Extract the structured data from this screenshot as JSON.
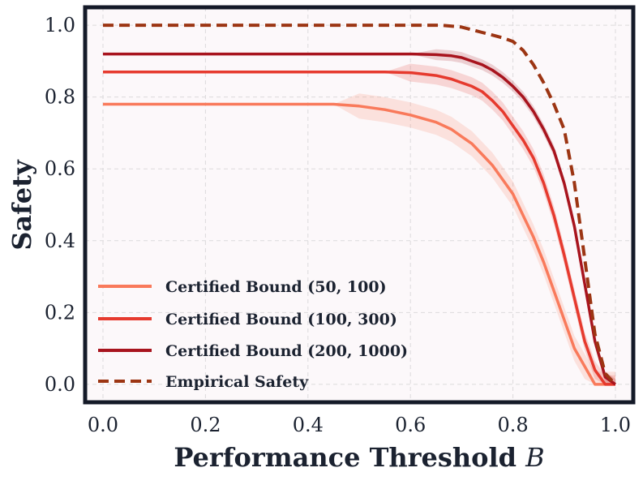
{
  "chart_data": {
    "type": "line",
    "xlabel": "Performance Threshold",
    "xlabel_var": "B",
    "ylabel": "Safety",
    "xlim": [
      0.0,
      1.0
    ],
    "ylim": [
      -0.05,
      1.05
    ],
    "xticks": [
      0.0,
      0.2,
      0.4,
      0.6,
      0.8,
      1.0
    ],
    "xtick_labels": [
      "0.0",
      "0.2",
      "0.4",
      "0.6",
      "0.8",
      "1.0"
    ],
    "yticks": [
      0.0,
      0.2,
      0.4,
      0.6,
      0.8,
      1.0
    ],
    "ytick_labels": [
      "0.0",
      "0.2",
      "0.4",
      "0.6",
      "0.8",
      "1.0"
    ],
    "grid": true,
    "legend_position": "lower-left",
    "colors": {
      "plot_background": "#fcf8fa",
      "frame": "#141a28",
      "grid": "#dcdadc"
    },
    "series": [
      {
        "name": "Certified Bound (50, 100)",
        "color": "#f97a5b",
        "style": "solid",
        "band_halfwidth": 0.035,
        "x": [
          0.0,
          0.45,
          0.5,
          0.55,
          0.6,
          0.65,
          0.68,
          0.7,
          0.72,
          0.74,
          0.76,
          0.78,
          0.8,
          0.82,
          0.84,
          0.86,
          0.88,
          0.9,
          0.92,
          0.94,
          0.96,
          1.0
        ],
        "y": [
          0.78,
          0.78,
          0.775,
          0.765,
          0.75,
          0.73,
          0.71,
          0.69,
          0.67,
          0.64,
          0.61,
          0.57,
          0.53,
          0.47,
          0.41,
          0.34,
          0.26,
          0.18,
          0.1,
          0.05,
          0.0,
          0.0
        ]
      },
      {
        "name": "Certified Bound (100, 300)",
        "color": "#e63a2e",
        "style": "solid",
        "band_halfwidth": 0.025,
        "x": [
          0.0,
          0.55,
          0.6,
          0.65,
          0.68,
          0.7,
          0.72,
          0.74,
          0.76,
          0.78,
          0.8,
          0.82,
          0.84,
          0.86,
          0.88,
          0.9,
          0.92,
          0.94,
          0.96,
          0.98,
          1.0
        ],
        "y": [
          0.87,
          0.87,
          0.868,
          0.86,
          0.85,
          0.84,
          0.83,
          0.815,
          0.79,
          0.76,
          0.72,
          0.68,
          0.63,
          0.56,
          0.47,
          0.36,
          0.24,
          0.12,
          0.04,
          0.0,
          0.0
        ]
      },
      {
        "name": "Certified Bound (200, 1000)",
        "color": "#a8141e",
        "style": "solid",
        "band_halfwidth": 0.015,
        "x": [
          0.0,
          0.6,
          0.65,
          0.68,
          0.7,
          0.72,
          0.74,
          0.76,
          0.78,
          0.8,
          0.82,
          0.84,
          0.86,
          0.88,
          0.9,
          0.92,
          0.94,
          0.96,
          0.98,
          1.0
        ],
        "y": [
          0.92,
          0.92,
          0.918,
          0.915,
          0.91,
          0.9,
          0.89,
          0.875,
          0.855,
          0.83,
          0.8,
          0.76,
          0.71,
          0.65,
          0.56,
          0.44,
          0.28,
          0.12,
          0.02,
          0.0
        ]
      },
      {
        "name": "Empirical Safety",
        "color": "#9c3513",
        "style": "dashed",
        "band_halfwidth": 0,
        "x": [
          0.0,
          0.66,
          0.7,
          0.74,
          0.78,
          0.8,
          0.82,
          0.84,
          0.86,
          0.88,
          0.9,
          0.92,
          0.94,
          0.96,
          0.98,
          1.0
        ],
        "y": [
          1.0,
          1.0,
          0.995,
          0.98,
          0.965,
          0.955,
          0.93,
          0.89,
          0.84,
          0.78,
          0.71,
          0.56,
          0.35,
          0.14,
          0.03,
          0.0
        ]
      }
    ]
  }
}
